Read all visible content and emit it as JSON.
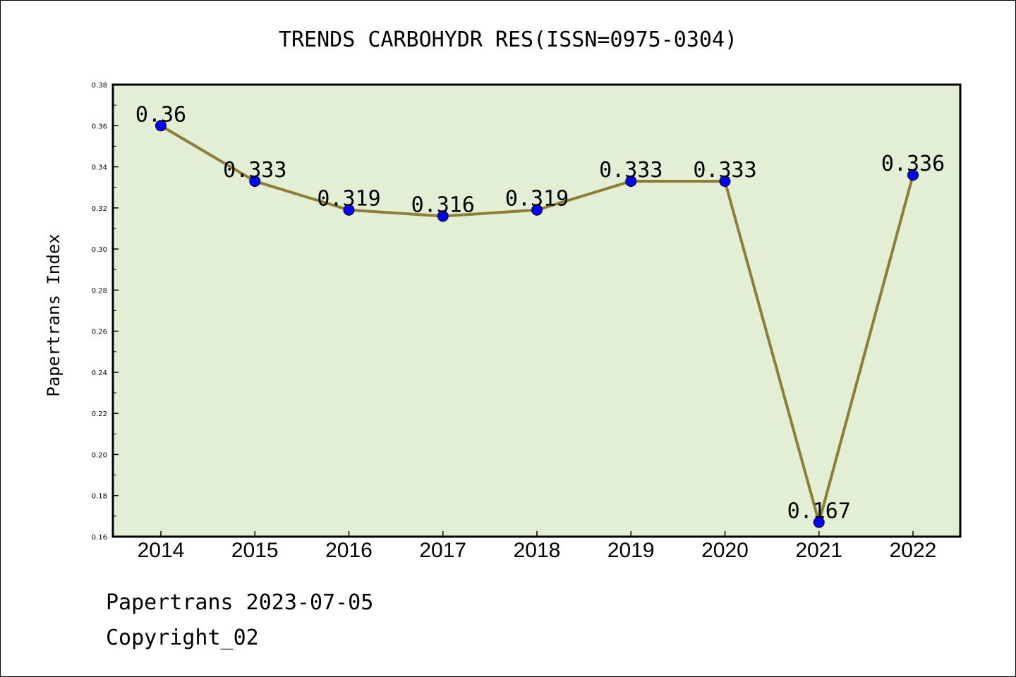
{
  "chart_data": {
    "type": "line",
    "title": "TRENDS CARBOHYDR RES(ISSN=0975-0304)",
    "xlabel": "",
    "ylabel": "Papertrans Index",
    "categories": [
      "2014",
      "2015",
      "2016",
      "2017",
      "2018",
      "2019",
      "2020",
      "2021",
      "2022"
    ],
    "series": [
      {
        "values": [
          0.36,
          0.333,
          0.319,
          0.316,
          0.319,
          0.333,
          0.333,
          0.167,
          0.336
        ],
        "labels": [
          "0.36",
          "0.333",
          "0.319",
          "0.316",
          "0.319",
          "0.333",
          "0.333",
          "0.167",
          "0.336"
        ]
      }
    ],
    "ylim": [
      0.16,
      0.38
    ],
    "yticks": [
      "0.16",
      "0.18",
      "0.20",
      "0.22",
      "0.24",
      "0.26",
      "0.28",
      "0.30",
      "0.32",
      "0.34",
      "0.36",
      "0.38"
    ],
    "grid": false,
    "colors": {
      "plot_background": "#e2efd5",
      "line": "#8c7e36",
      "marker": "#0000ff"
    }
  },
  "footer": {
    "date_line": "Papertrans 2023-07-05",
    "copyright_line": "Copyright_02"
  }
}
